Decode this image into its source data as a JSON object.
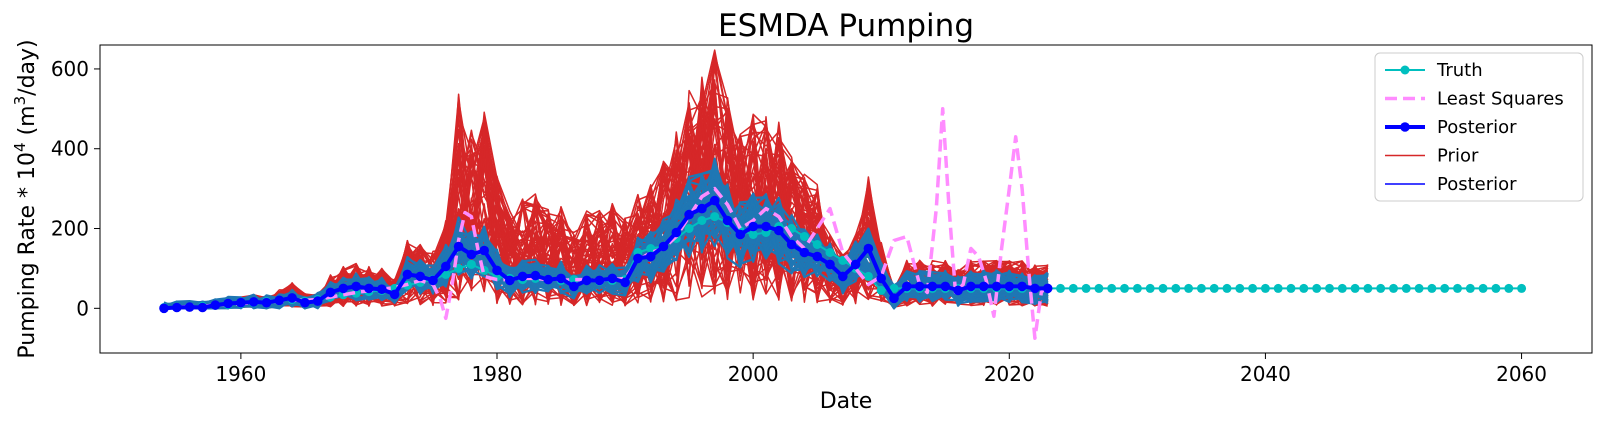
{
  "chart_data": {
    "type": "line",
    "title": "ESMDA Pumping",
    "xlabel": "Date",
    "ylabel_main": "Pumping Rate * 10",
    "ylabel_exp": "4",
    "ylabel_unit_open": " (m",
    "ylabel_unit_exp": "3",
    "ylabel_unit_close": "/day)",
    "xlim": [
      1949,
      2065.5
    ],
    "ylim": [
      -112,
      660
    ],
    "xticks": [
      1960,
      1980,
      2000,
      2020,
      2040,
      2060
    ],
    "yticks": [
      0,
      200,
      400,
      600
    ],
    "grid": false,
    "legend_position": "top-right",
    "colors": {
      "truth": "#00bfbf",
      "least_squares": "#ff8cff",
      "posterior_mean": "#0000ff",
      "prior": "#d62728",
      "posterior_ensemble": "#1f77b4"
    },
    "legend": [
      {
        "label": "Truth",
        "style": "truth"
      },
      {
        "label": "Least Squares",
        "style": "least_squares"
      },
      {
        "label": "Posterior",
        "style": "posterior_mean"
      },
      {
        "label": "Prior",
        "style": "prior"
      },
      {
        "label": "Posterior",
        "style": "posterior_ensemble"
      }
    ],
    "series": [
      {
        "name": "Truth",
        "x": [
          1954,
          1955,
          1956,
          1957,
          1958,
          1959,
          1960,
          1961,
          1962,
          1963,
          1964,
          1965,
          1966,
          1967,
          1968,
          1969,
          1970,
          1971,
          1972,
          1973,
          1974,
          1975,
          1976,
          1977,
          1978,
          1979,
          1980,
          1981,
          1982,
          1983,
          1984,
          1985,
          1986,
          1987,
          1988,
          1989,
          1990,
          1991,
          1992,
          1993,
          1994,
          1995,
          1996,
          1997,
          1998,
          1999,
          2000,
          2001,
          2002,
          2003,
          2004,
          2005,
          2006,
          2007,
          2008,
          2009,
          2010,
          2011,
          2012,
          2013,
          2014,
          2015,
          2016,
          2017,
          2018,
          2019,
          2020,
          2021,
          2022,
          2023,
          2024,
          2025,
          2026,
          2027,
          2028,
          2029,
          2030,
          2031,
          2032,
          2033,
          2034,
          2035,
          2036,
          2037,
          2038,
          2039,
          2040,
          2041,
          2042,
          2043,
          2044,
          2045,
          2046,
          2047,
          2048,
          2049,
          2050,
          2051,
          2052,
          2053,
          2054,
          2055,
          2056,
          2057,
          2058,
          2059,
          2060
        ],
        "y": [
          2,
          3,
          4,
          5,
          7,
          9,
          12,
          14,
          17,
          19,
          22,
          18,
          22,
          28,
          34,
          38,
          42,
          45,
          50,
          58,
          65,
          72,
          85,
          100,
          110,
          95,
          80,
          75,
          72,
          75,
          73,
          70,
          72,
          70,
          68,
          70,
          72,
          140,
          150,
          155,
          175,
          200,
          220,
          230,
          215,
          195,
          185,
          190,
          205,
          200,
          180,
          160,
          140,
          120,
          100,
          80,
          45,
          50,
          50,
          50,
          50,
          50,
          50,
          50,
          50,
          50,
          50,
          50,
          50,
          50,
          50,
          50,
          50,
          50,
          50,
          50,
          50,
          50,
          50,
          50,
          50,
          50,
          50,
          50,
          50,
          50,
          50,
          50,
          50,
          50,
          50,
          50,
          50,
          50,
          50,
          50,
          50,
          50,
          50,
          50,
          50,
          50,
          50,
          50,
          50,
          50,
          50
        ]
      },
      {
        "name": "Least Squares",
        "x": [
          1954,
          1955,
          1956,
          1957,
          1958,
          1959,
          1960,
          1961,
          1962,
          1963,
          1964,
          1965,
          1966,
          1967,
          1968,
          1969,
          1970,
          1971,
          1972,
          1973,
          1974,
          1975,
          1975.6,
          1976,
          1976.5,
          1977,
          1977.5,
          1978,
          1978.5,
          1979,
          1980,
          1981,
          1982,
          1983,
          1984,
          1985,
          1986,
          1987,
          1988,
          1989,
          1990,
          1991,
          1992,
          1993,
          1994,
          1995,
          1996,
          1997,
          1998,
          1999,
          2000,
          2001,
          2002,
          2003,
          2004,
          2005,
          2006,
          2007,
          2008,
          2009,
          2010,
          2011,
          2012,
          2013,
          2013.6,
          2014.3,
          2014.8,
          2015.3,
          2015.8,
          2016.4,
          2017,
          2017.6,
          2018.2,
          2018.8,
          2019.4,
          2020,
          2020.5,
          2021,
          2021.5,
          2022,
          2022.5,
          2023
        ],
        "y": [
          0,
          2,
          5,
          5,
          8,
          10,
          12,
          14,
          16,
          18,
          20,
          20,
          22,
          28,
          34,
          40,
          44,
          48,
          52,
          60,
          70,
          60,
          20,
          -25,
          60,
          170,
          240,
          230,
          150,
          80,
          72,
          72,
          75,
          75,
          72,
          70,
          72,
          72,
          70,
          72,
          75,
          120,
          140,
          150,
          180,
          230,
          280,
          300,
          260,
          200,
          220,
          250,
          230,
          180,
          150,
          200,
          250,
          140,
          100,
          60,
          80,
          170,
          180,
          60,
          40,
          250,
          500,
          250,
          40,
          60,
          150,
          130,
          70,
          -20,
          150,
          300,
          430,
          300,
          100,
          -75,
          40,
          60
        ]
      },
      {
        "name": "Posterior",
        "x": [
          1954,
          1955,
          1956,
          1957,
          1958,
          1959,
          1960,
          1961,
          1962,
          1963,
          1964,
          1965,
          1966,
          1967,
          1968,
          1969,
          1970,
          1971,
          1972,
          1973,
          1974,
          1975,
          1976,
          1977,
          1978,
          1979,
          1980,
          1981,
          1982,
          1983,
          1984,
          1985,
          1986,
          1987,
          1988,
          1989,
          1990,
          1991,
          1992,
          1993,
          1994,
          1995,
          1996,
          1997,
          1998,
          1999,
          2000,
          2001,
          2002,
          2003,
          2004,
          2005,
          2006,
          2007,
          2008,
          2009,
          2010,
          2011,
          2012,
          2013,
          2014,
          2015,
          2016,
          2017,
          2018,
          2019,
          2020,
          2021,
          2022,
          2023
        ],
        "y": [
          0,
          2,
          3,
          2,
          8,
          12,
          14,
          16,
          14,
          20,
          26,
          14,
          18,
          40,
          50,
          55,
          50,
          48,
          35,
          85,
          80,
          70,
          105,
          155,
          135,
          145,
          95,
          70,
          80,
          82,
          72,
          75,
          55,
          70,
          70,
          75,
          65,
          125,
          130,
          155,
          190,
          235,
          250,
          270,
          220,
          185,
          205,
          205,
          195,
          160,
          140,
          130,
          110,
          80,
          110,
          150,
          75,
          25,
          55,
          55,
          55,
          55,
          45,
          55,
          55,
          55,
          55,
          55,
          50,
          50
        ]
      }
    ]
  }
}
